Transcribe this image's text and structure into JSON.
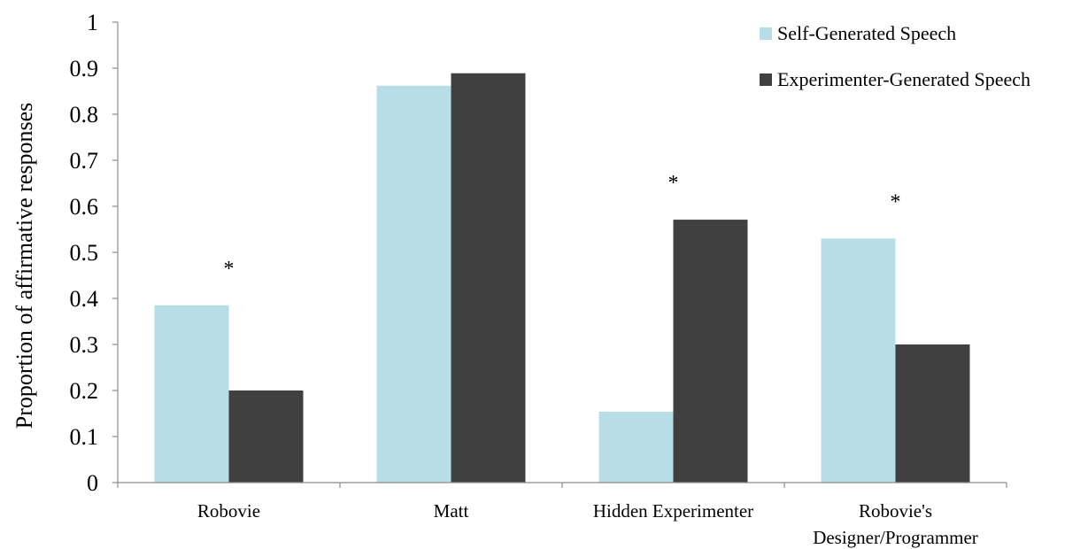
{
  "chart_data": {
    "type": "bar",
    "ylabel": "Proportion of affirmative responses",
    "xlabel": "",
    "ylim": [
      0,
      1
    ],
    "yticks": [
      0,
      0.1,
      0.2,
      0.3,
      0.4,
      0.5,
      0.6,
      0.7,
      0.8,
      0.9,
      1
    ],
    "ytick_labels": [
      "0",
      "0.1",
      "0.2",
      "0.3",
      "0.4",
      "0.5",
      "0.6",
      "0.7",
      "0.8",
      "0.9",
      "1"
    ],
    "grid": false,
    "legend_position": "top-right",
    "categories": [
      [
        "Robovie"
      ],
      [
        "Matt"
      ],
      [
        "Hidden Experimenter"
      ],
      [
        "Robovie's",
        "Designer/Programmer"
      ]
    ],
    "series": [
      {
        "name": "Self-Generated Speech",
        "color": "#b7dde6",
        "values": [
          0.385,
          0.862,
          0.154,
          0.53
        ]
      },
      {
        "name": "Experimenter-Generated Speech",
        "color": "#404040",
        "values": [
          0.2,
          0.889,
          0.571,
          0.3
        ]
      }
    ],
    "annotations": [
      {
        "category_index": 0,
        "text": "*"
      },
      {
        "category_index": 1,
        "text": ""
      },
      {
        "category_index": 2,
        "text": "*"
      },
      {
        "category_index": 3,
        "text": "*"
      }
    ]
  }
}
